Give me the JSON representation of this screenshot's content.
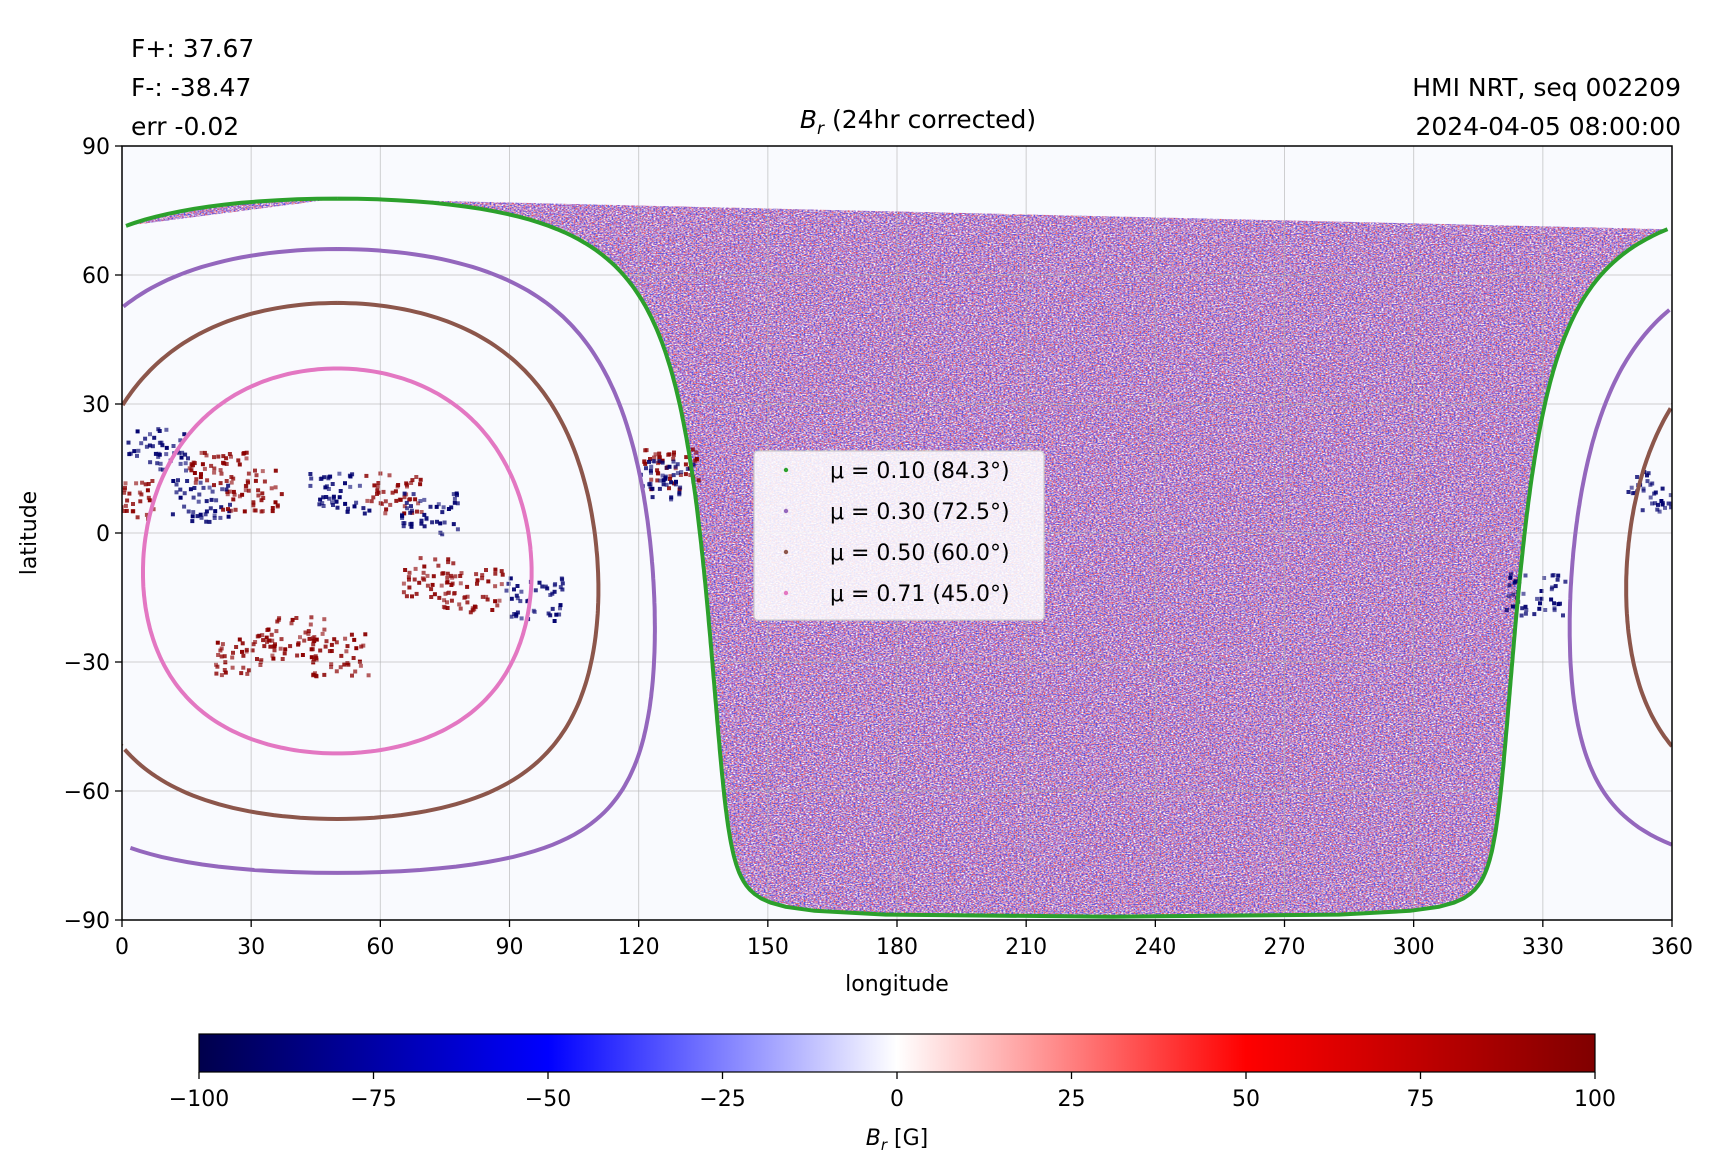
{
  "header": {
    "flux_pos": "F+: 37.67",
    "flux_neg": "F-: -38.47",
    "err": "err -0.02",
    "title_sym": "B",
    "title_sub": "r",
    "title_rest": " (24hr corrected)",
    "instrument": "HMI NRT, seq 002209",
    "datetime": "2024-04-05 08:00:00"
  },
  "chart_data": {
    "type": "heatmap",
    "title": "B_r (24hr corrected)",
    "xlabel": "longitude",
    "ylabel": "latitude",
    "xlim": [
      0,
      360
    ],
    "ylim": [
      -90,
      90
    ],
    "xticks": [
      0,
      30,
      60,
      90,
      120,
      150,
      180,
      210,
      240,
      270,
      300,
      330,
      360
    ],
    "yticks": [
      90,
      60,
      30,
      0,
      -30,
      -60,
      -90
    ],
    "grid": true,
    "disk_center": {
      "lon": 50,
      "lat": -6.5
    },
    "contours": [
      {
        "label": "μ = 0.10 (84.3°)",
        "mu": 0.1,
        "angle_deg": 84.3,
        "color": "#2ca02c"
      },
      {
        "label": "μ = 0.30 (72.5°)",
        "mu": 0.3,
        "angle_deg": 72.5,
        "color": "#9467bd"
      },
      {
        "label": "μ = 0.50 (60.0°)",
        "mu": 0.5,
        "angle_deg": 60.0,
        "color": "#8c564b"
      },
      {
        "label": "μ = 0.71 (45.0°)",
        "mu": 0.71,
        "angle_deg": 45.0,
        "color": "#e377c2"
      }
    ],
    "legend_position": "center",
    "active_regions": [
      {
        "lon": 22,
        "lat": 15,
        "polarity": "positive"
      },
      {
        "lon": 8,
        "lat": 20,
        "polarity": "negative"
      },
      {
        "lon": 18,
        "lat": 8,
        "polarity": "negative"
      },
      {
        "lon": 30,
        "lat": 10,
        "polarity": "positive"
      },
      {
        "lon": 50,
        "lat": 10,
        "polarity": "negative"
      },
      {
        "lon": 63,
        "lat": 10,
        "polarity": "positive"
      },
      {
        "lon": 71,
        "lat": 5,
        "polarity": "negative"
      },
      {
        "lon": 0,
        "lat": 8,
        "polarity": "positive"
      },
      {
        "lon": 72,
        "lat": -10,
        "polarity": "positive"
      },
      {
        "lon": 81,
        "lat": -13,
        "polarity": "positive"
      },
      {
        "lon": 95,
        "lat": -15,
        "polarity": "negative"
      },
      {
        "lon": 40,
        "lat": -24,
        "polarity": "positive"
      },
      {
        "lon": 50,
        "lat": -28,
        "polarity": "positive"
      },
      {
        "lon": 28,
        "lat": -28,
        "polarity": "positive"
      },
      {
        "lon": 127,
        "lat": 15,
        "polarity": "positive"
      },
      {
        "lon": 127,
        "lat": 13,
        "polarity": "negative"
      },
      {
        "lon": 356,
        "lat": 10,
        "polarity": "negative"
      },
      {
        "lon": 328,
        "lat": -14,
        "polarity": "negative"
      }
    ],
    "colorbar": {
      "label": "B_r [G]",
      "vmin": -100,
      "vmax": 100,
      "ticks": [
        -100,
        -75,
        -50,
        -25,
        0,
        25,
        50,
        75,
        100
      ],
      "colormap": "seismic",
      "stops": [
        "#00004c",
        "#0000ff",
        "#ffffff",
        "#ff0000",
        "#800000"
      ]
    }
  },
  "colors": {
    "background_offdisk": "#f9fafe",
    "grid": "#b0b0b0"
  }
}
